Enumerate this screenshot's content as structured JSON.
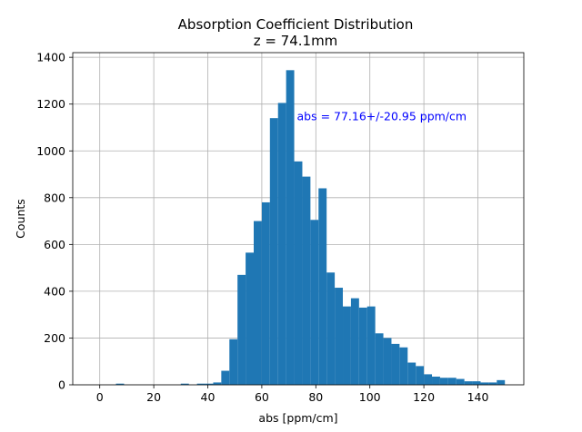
{
  "chart_data": {
    "type": "bar",
    "title": "Absorption Coefficient Distribution",
    "subtitle": "z = 74.1mm",
    "xlabel": "abs [ppm/cm]",
    "ylabel": "Counts",
    "xlim": [
      -10,
      157
    ],
    "ylim": [
      0,
      1420
    ],
    "xticks": [
      0,
      20,
      40,
      60,
      80,
      100,
      120,
      140
    ],
    "yticks": [
      0,
      200,
      400,
      600,
      800,
      1000,
      1200,
      1400
    ],
    "grid": true,
    "bar_color": "#1f77b4",
    "annotation": {
      "text": "abs = 77.16+/-20.95 ppm/cm",
      "color": "#0000ff",
      "x": 73,
      "y": 1130
    },
    "bin_width": 3,
    "x": [
      0,
      3,
      6,
      9,
      12,
      15,
      18,
      21,
      24,
      27,
      30,
      33,
      36,
      39,
      42,
      45,
      48,
      51,
      54,
      57,
      60,
      63,
      66,
      69,
      72,
      75,
      78,
      81,
      84,
      87,
      90,
      93,
      96,
      99,
      102,
      105,
      108,
      111,
      114,
      117,
      120,
      123,
      126,
      129,
      132,
      135,
      138,
      141,
      144,
      147
    ],
    "values": [
      0,
      0,
      5,
      0,
      0,
      0,
      0,
      0,
      0,
      0,
      5,
      0,
      5,
      5,
      10,
      60,
      195,
      470,
      565,
      700,
      780,
      1140,
      1205,
      1345,
      955,
      890,
      705,
      840,
      480,
      415,
      335,
      370,
      330,
      335,
      220,
      200,
      175,
      160,
      95,
      80,
      45,
      35,
      30,
      30,
      25,
      15,
      15,
      10,
      10,
      20
    ]
  }
}
